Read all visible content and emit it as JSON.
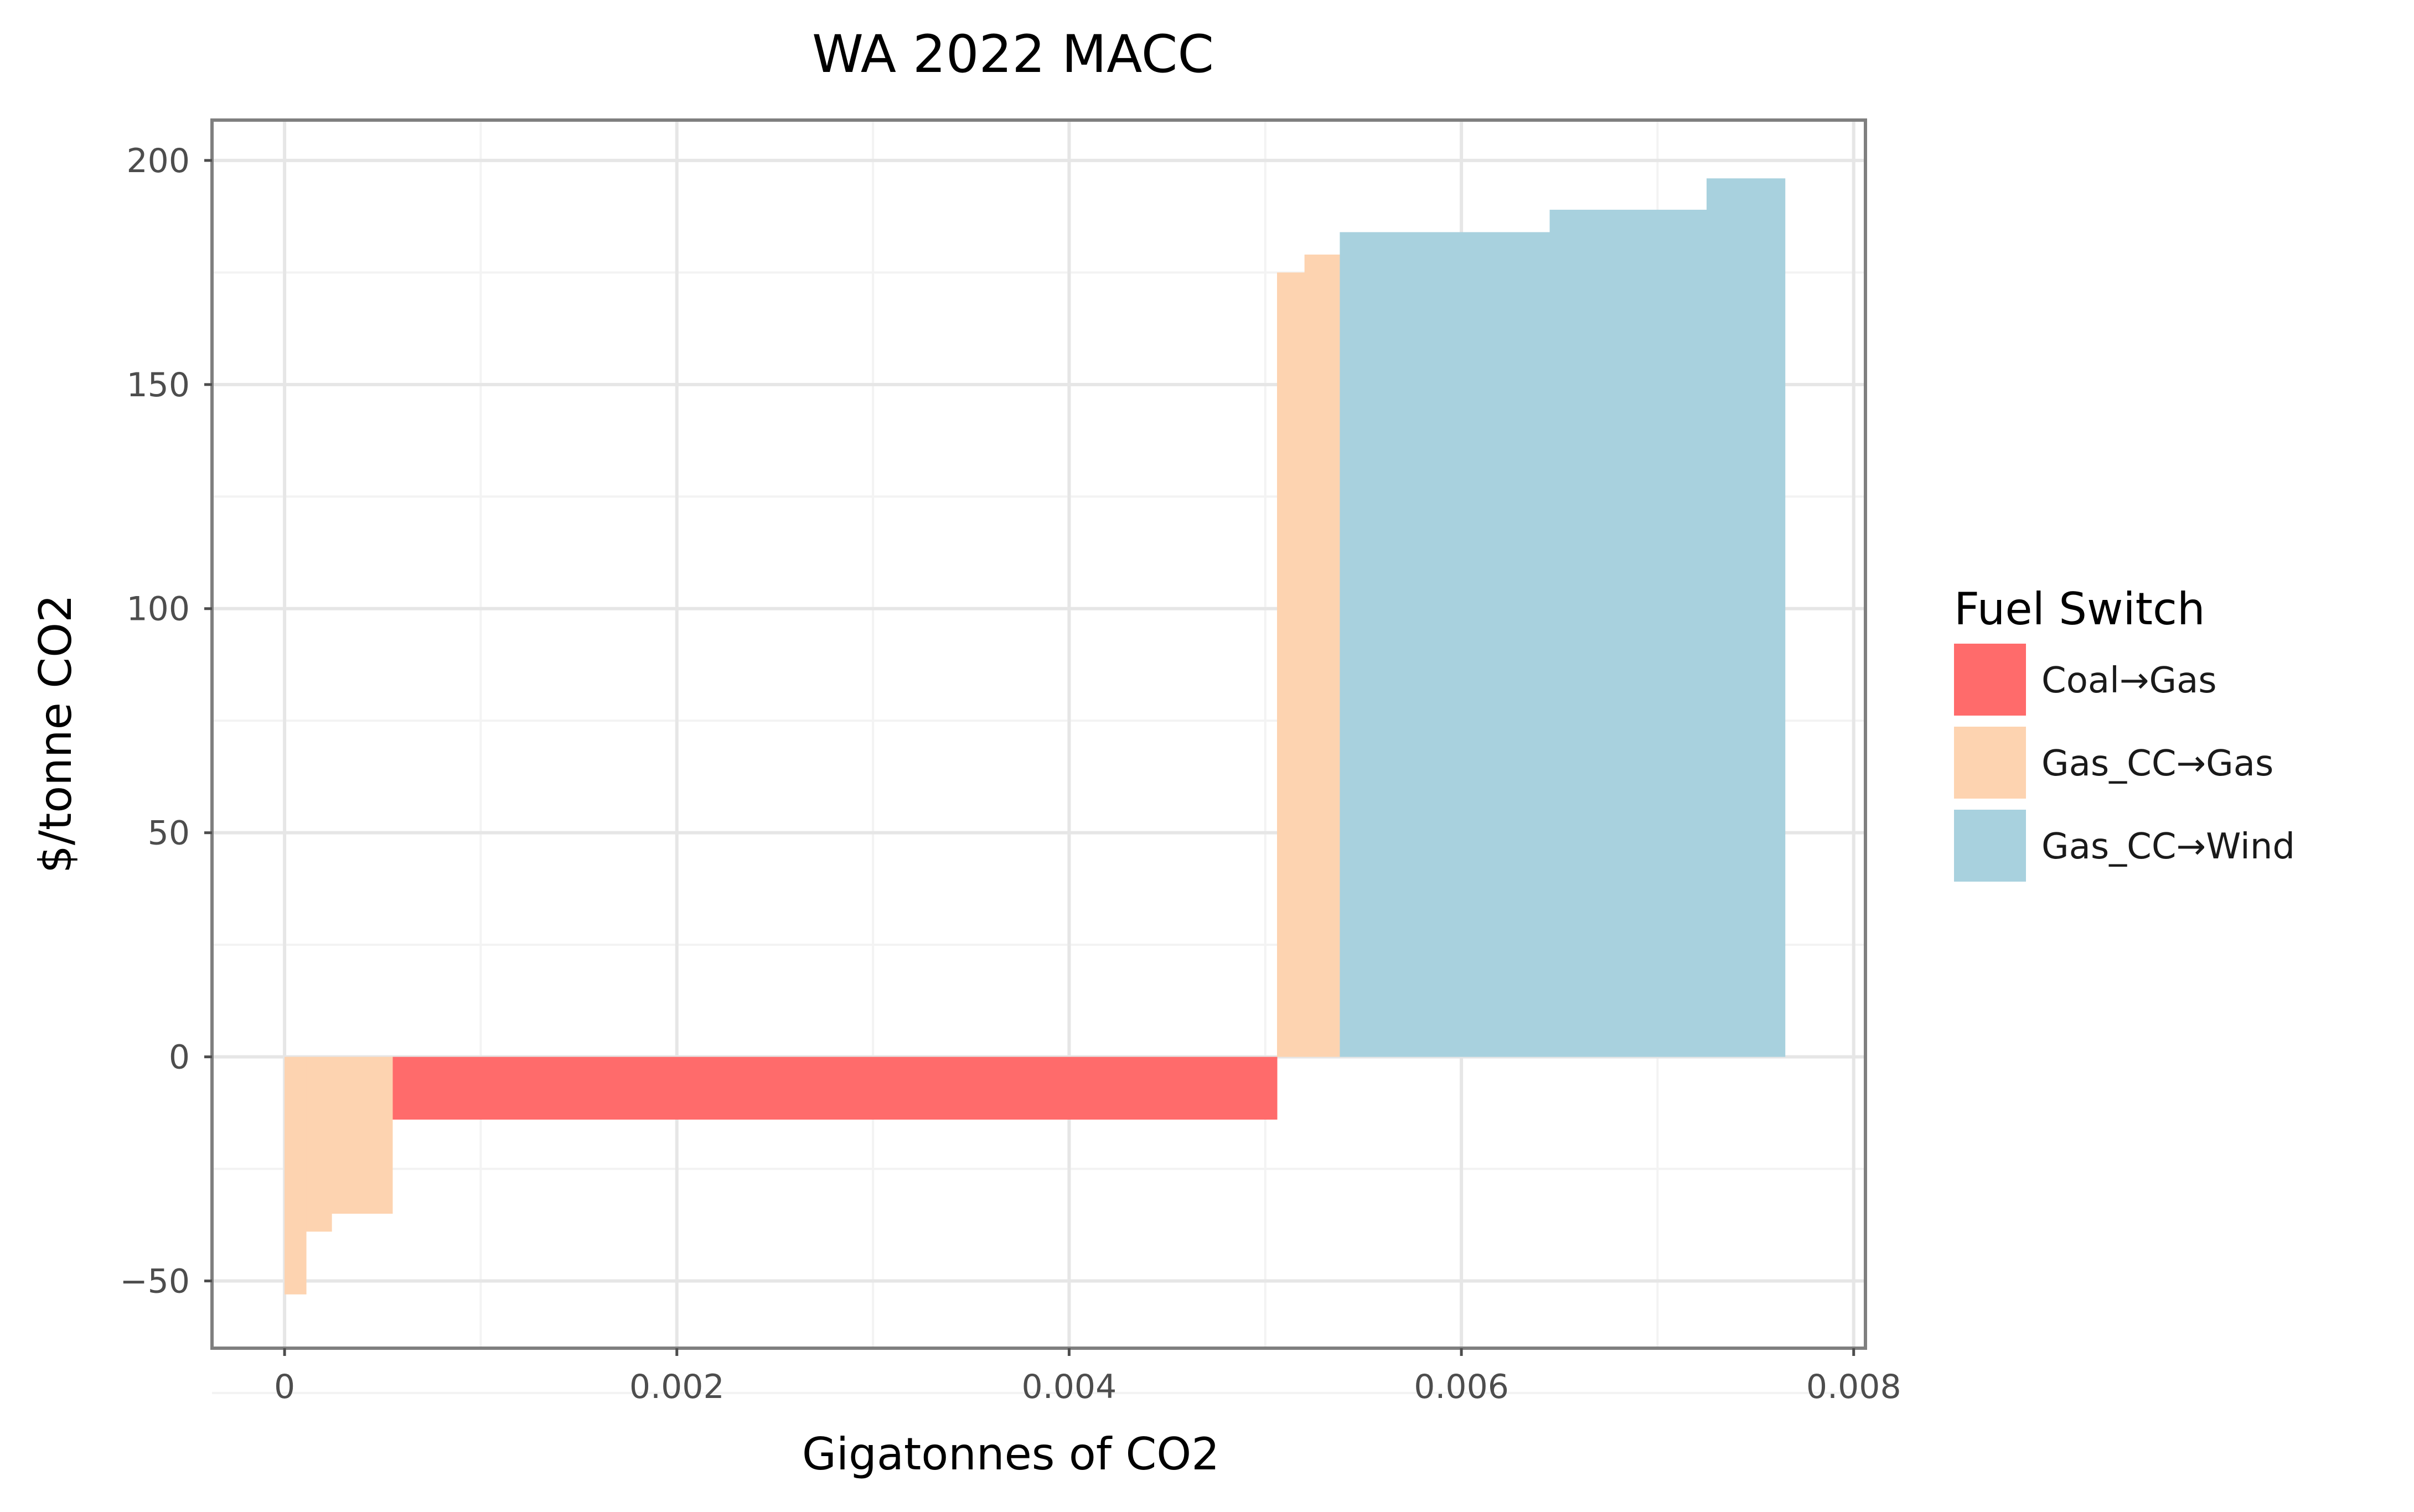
{
  "chart_data": {
    "type": "bar",
    "subtype": "marginal-abatement-cost-curve",
    "title": "WA 2022 MACC",
    "xlabel": "Gigatonnes of CO2",
    "ylabel": "$/tonne CO2",
    "xlim": [
      -0.00037,
      0.00806
    ],
    "ylim": [
      -65,
      209
    ],
    "x_ticks": [
      0,
      0.002,
      0.004,
      0.006,
      0.008
    ],
    "x_tick_labels": [
      "0",
      "0.002",
      "0.004",
      "0.006",
      "0.008"
    ],
    "y_ticks": [
      -50,
      0,
      50,
      100,
      150,
      200
    ],
    "y_tick_labels": [
      "−50",
      "0",
      "50",
      "100",
      "150",
      "200"
    ],
    "grid": true,
    "legend": {
      "title": "Fuel Switch",
      "position": "right",
      "entries": [
        "Coal→Gas",
        "Gas_CC→Gas",
        "Gas_CC→Wind"
      ]
    },
    "colors": {
      "Coal→Gas": "#ff6b6b",
      "Gas_CC→Gas": "#fdd3b0",
      "Gas_CC→Wind": "#a8d1de"
    },
    "series": [
      {
        "name": "Coal→Gas",
        "segments": [
          {
            "x_start": 0.00055,
            "x_end": 0.00506,
            "value": -14
          }
        ]
      },
      {
        "name": "Gas_CC→Gas",
        "segments": [
          {
            "x_start": 0.0,
            "x_end": 0.00011,
            "value": -53
          },
          {
            "x_start": 0.00011,
            "x_end": 0.00024,
            "value": -39
          },
          {
            "x_start": 0.00024,
            "x_end": 0.00055,
            "value": -35
          },
          {
            "x_start": 0.00506,
            "x_end": 0.0052,
            "value": 175
          },
          {
            "x_start": 0.0052,
            "x_end": 0.00538,
            "value": 179
          }
        ]
      },
      {
        "name": "Gas_CC→Wind",
        "segments": [
          {
            "x_start": 0.00538,
            "x_end": 0.00645,
            "value": 184
          },
          {
            "x_start": 0.00645,
            "x_end": 0.00725,
            "value": 189
          },
          {
            "x_start": 0.00725,
            "x_end": 0.00765,
            "value": 196
          }
        ]
      }
    ]
  }
}
